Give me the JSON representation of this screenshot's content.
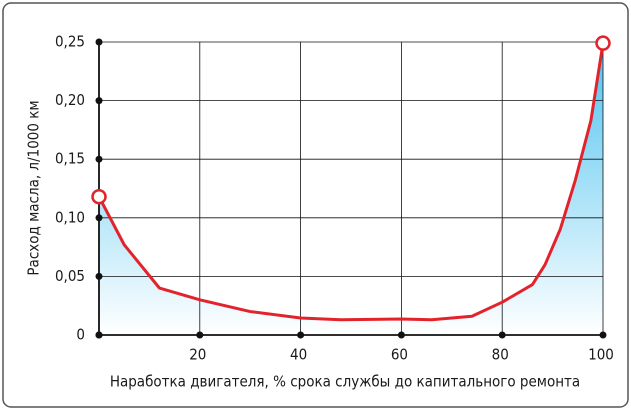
{
  "chart_data": {
    "type": "line",
    "ylabel": "Расход масла, л/1000 км",
    "xlabel": "Наработка двигателя, % срока службы до капитального ремонта",
    "x": [
      0,
      5,
      12,
      20,
      30,
      40,
      48,
      60,
      66,
      74,
      80,
      86,
      88.5,
      91.5,
      94.5,
      97.6,
      100
    ],
    "values": [
      0.118,
      0.077,
      0.04,
      0.03,
      0.02,
      0.0145,
      0.013,
      0.0137,
      0.013,
      0.016,
      0.028,
      0.043,
      0.06,
      0.09,
      0.132,
      0.183,
      0.249
    ],
    "color": "#e3232b",
    "fill_color": "#4fc3f0",
    "xlim": [
      0,
      100
    ],
    "xticks": [
      20,
      40,
      60,
      80,
      100
    ],
    "ylim": [
      0,
      0.25
    ],
    "yticks": [
      0,
      {
        "value": 0.05,
        "label": "0,05"
      },
      {
        "value": 0.1,
        "label": "0,10"
      },
      {
        "value": 0.15,
        "label": "0,15"
      },
      {
        "value": 0.2,
        "label": "0,20"
      },
      {
        "value": 0.25,
        "label": "0,25"
      }
    ],
    "grid": true
  }
}
